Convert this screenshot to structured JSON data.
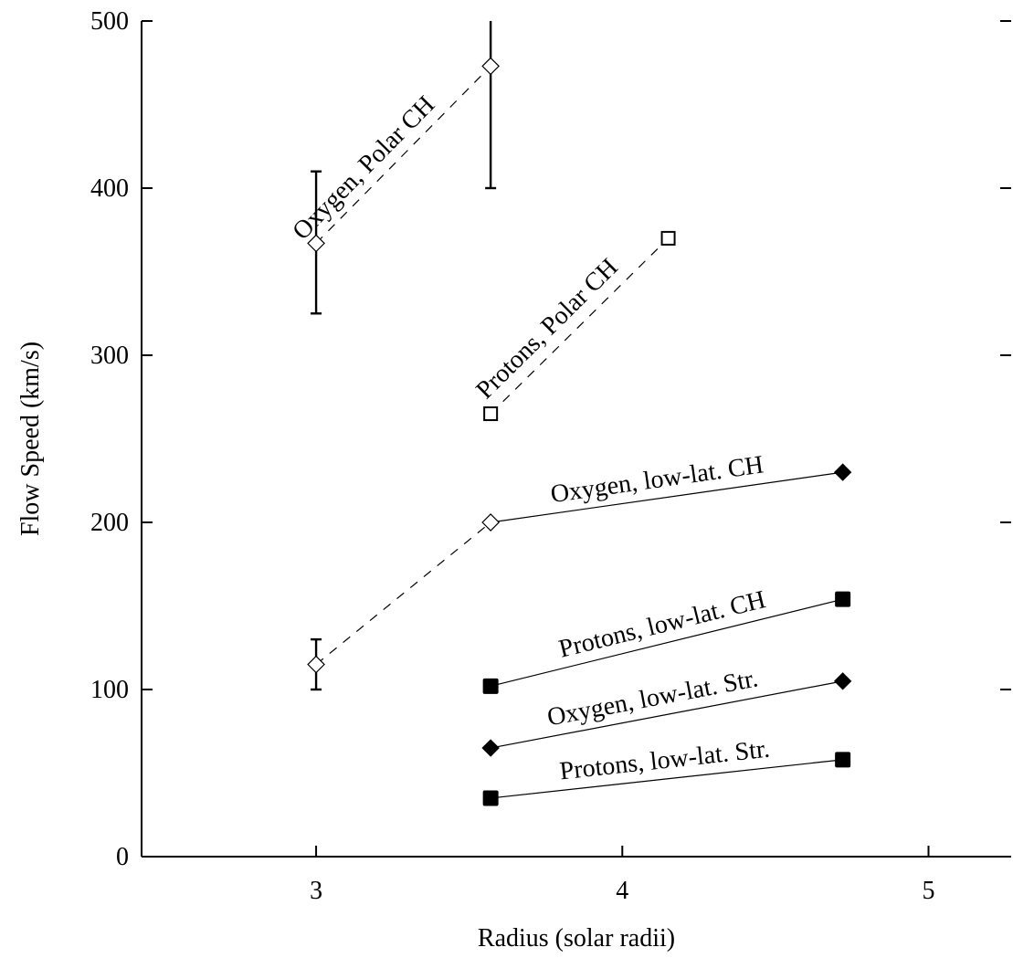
{
  "chart_data": {
    "type": "scatter",
    "title": "",
    "xlabel": "Radius (solar radii)",
    "ylabel": "Flow Speed (km/s)",
    "xlim": [
      2.43,
      5.27
    ],
    "ylim": [
      0,
      500
    ],
    "x_ticks": [
      3,
      4,
      5
    ],
    "y_ticks": [
      0,
      100,
      200,
      300,
      400,
      500
    ],
    "x_tick_labels": [
      "3",
      "4",
      "5"
    ],
    "y_tick_labels": [
      "0",
      "100",
      "200",
      "300",
      "400",
      "500"
    ],
    "grid": false,
    "legend": "none",
    "series": [
      {
        "name": "Oxygen, Polar CH",
        "marker": "open-diamond",
        "line": "dashed",
        "points": [
          {
            "x": 3.0,
            "y": 367,
            "err_low": 325,
            "err_high": 410
          },
          {
            "x": 3.57,
            "y": 473,
            "err_low": 400,
            "err_high": 500
          }
        ]
      },
      {
        "name": "Protons, Polar CH",
        "marker": "open-square",
        "line": "dashed",
        "points": [
          {
            "x": 3.57,
            "y": 265
          },
          {
            "x": 4.15,
            "y": 370
          }
        ]
      },
      {
        "name": "Oxygen, low-lat. CH",
        "marker": "filled-diamond",
        "line": "solid",
        "points": [
          {
            "x": 3.57,
            "y": 200
          },
          {
            "x": 4.72,
            "y": 230
          }
        ]
      },
      {
        "name": "",
        "marker": "open-diamond",
        "line": "dashed",
        "points": [
          {
            "x": 3.0,
            "y": 115,
            "err_low": 100,
            "err_high": 130
          },
          {
            "x": 3.57,
            "y": 200
          }
        ]
      },
      {
        "name": "Protons, low-lat. CH",
        "marker": "filled-square",
        "line": "solid",
        "points": [
          {
            "x": 3.57,
            "y": 102
          },
          {
            "x": 4.72,
            "y": 154
          }
        ]
      },
      {
        "name": "Oxygen, low-lat. Str.",
        "marker": "filled-diamond",
        "line": "solid",
        "points": [
          {
            "x": 3.57,
            "y": 65
          },
          {
            "x": 4.72,
            "y": 105
          }
        ]
      },
      {
        "name": "Protons, low-lat. Str.",
        "marker": "filled-square",
        "line": "solid",
        "points": [
          {
            "x": 3.57,
            "y": 35
          },
          {
            "x": 4.72,
            "y": 58
          }
        ]
      }
    ],
    "annotations": [
      {
        "text": "Oxygen, Polar CH",
        "series": 0
      },
      {
        "text": "Protons, Polar CH",
        "series": 1
      },
      {
        "text": "Oxygen, low-lat. CH",
        "series": 2
      },
      {
        "text": "Protons, low-lat. CH",
        "series": 4
      },
      {
        "text": "Oxygen, low-lat. Str.",
        "series": 5
      },
      {
        "text": "Protons, low-lat. Str.",
        "series": 6
      }
    ]
  }
}
